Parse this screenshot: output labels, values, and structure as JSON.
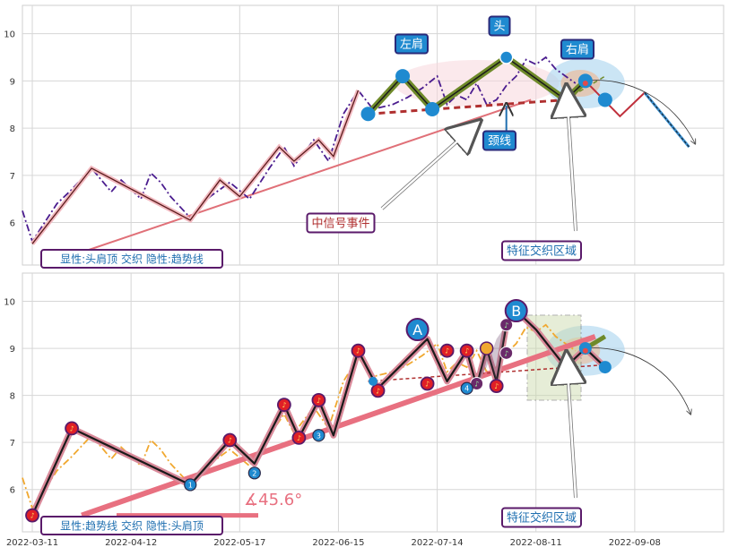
{
  "chart_data": [
    {
      "type": "line",
      "panel": "top",
      "title": "",
      "xlabel": "",
      "ylabel": "",
      "ylim": [
        5.1,
        10.6
      ],
      "yticks": [
        6,
        7,
        8,
        9,
        10
      ],
      "grid": true,
      "series": [
        {
          "style": "price-line",
          "values": [
            [
              0,
              6.25
            ],
            [
              2,
              5.6
            ],
            [
              7,
              6.4
            ],
            [
              10,
              6.7
            ],
            [
              14,
              7.15
            ],
            [
              18,
              6.65
            ],
            [
              20,
              6.9
            ],
            [
              22,
              6.7
            ],
            [
              24,
              6.5
            ],
            [
              26,
              7.05
            ],
            [
              28,
              6.85
            ],
            [
              30,
              6.55
            ],
            [
              34,
              6.1
            ],
            [
              38,
              6.55
            ],
            [
              42,
              6.85
            ],
            [
              46,
              6.5
            ],
            [
              50,
              7.15
            ],
            [
              53,
              7.6
            ],
            [
              55,
              7.2
            ],
            [
              59,
              7.75
            ],
            [
              62,
              7.3
            ],
            [
              65,
              8.3
            ],
            [
              68,
              8.8
            ],
            [
              71,
              8.4
            ],
            [
              75,
              8.5
            ],
            [
              78,
              8.65
            ],
            [
              81,
              8.85
            ],
            [
              84,
              9.1
            ],
            [
              86,
              8.5
            ],
            [
              88,
              8.7
            ],
            [
              90,
              8.6
            ],
            [
              92,
              8.95
            ],
            [
              94,
              8.5
            ],
            [
              96,
              8.6
            ],
            [
              98,
              8.9
            ],
            [
              100,
              9.1
            ],
            [
              102,
              9.45
            ],
            [
              104,
              9.35
            ],
            [
              106,
              9.5
            ],
            [
              108,
              9.25
            ],
            [
              110,
              9.1
            ],
            [
              112,
              8.95
            ]
          ]
        },
        {
          "style": "zigzag",
          "values": [
            [
              2,
              5.55
            ],
            [
              14,
              7.15
            ],
            [
              34,
              6.05
            ],
            [
              40,
              6.9
            ],
            [
              44,
              6.55
            ],
            [
              52,
              7.6
            ],
            [
              55,
              7.3
            ],
            [
              60,
              7.75
            ],
            [
              63,
              7.4
            ],
            [
              68,
              8.8
            ],
            [
              71,
              8.4
            ],
            [
              76,
              8.5
            ],
            [
              80,
              9.1
            ],
            [
              82,
              8.45
            ],
            [
              88,
              8.6
            ],
            [
              92,
              8.3
            ],
            [
              98,
              9.55
            ],
            [
              104,
              9.2
            ],
            [
              110,
              8.6
            ],
            [
              114,
              9.0
            ],
            [
              118,
              8.55
            ],
            [
              121,
              8.3
            ],
            [
              126,
              8.75
            ]
          ]
        }
      ],
      "pattern": {
        "name": "head-and-shoulders-top",
        "points": [
          [
            70,
            8.3
          ],
          [
            77,
            9.1
          ],
          [
            83,
            8.4
          ],
          [
            98,
            9.5
          ],
          [
            110,
            8.6
          ],
          [
            114,
            9.0
          ],
          [
            118,
            8.6
          ]
        ],
        "neckline": [
          [
            70,
            8.3
          ],
          [
            110,
            8.6
          ]
        ],
        "trendline": [
          [
            10,
            5.3
          ],
          [
            103,
            8.6
          ]
        ],
        "projection": [
          [
            114,
            9.0
          ],
          [
            121,
            8.25
          ],
          [
            126,
            8.75
          ],
          [
            135,
            7.6
          ]
        ]
      },
      "annotations": {
        "left_shoulder": "左肩",
        "head": "头",
        "right_shoulder": "右肩",
        "neckline": "颈线",
        "mid_signal": "中信号事件",
        "feature_zone": "特征交织区域",
        "caption": "显性:头肩顶 交织 隐性:趋势线"
      }
    },
    {
      "type": "line",
      "panel": "bottom",
      "title": "",
      "xlabel": "",
      "ylabel": "",
      "ylim": [
        5.1,
        10.6
      ],
      "yticks": [
        6,
        7,
        8,
        9,
        10
      ],
      "grid": true,
      "xticks": [
        "2022-03-11",
        "2022-04-12",
        "2022-05-17",
        "2022-06-15",
        "2022-07-14",
        "2022-08-11",
        "2022-09-08"
      ],
      "series": [
        {
          "style": "price-line",
          "values": [
            [
              0,
              6.25
            ],
            [
              2,
              5.6
            ],
            [
              7,
              6.4
            ],
            [
              10,
              6.7
            ],
            [
              14,
              7.15
            ],
            [
              18,
              6.65
            ],
            [
              20,
              6.9
            ],
            [
              22,
              6.7
            ],
            [
              24,
              6.5
            ],
            [
              26,
              7.05
            ],
            [
              28,
              6.85
            ],
            [
              30,
              6.55
            ],
            [
              34,
              6.1
            ],
            [
              38,
              6.55
            ],
            [
              42,
              6.85
            ],
            [
              46,
              6.5
            ],
            [
              50,
              7.15
            ],
            [
              53,
              7.6
            ],
            [
              55,
              7.2
            ],
            [
              59,
              7.75
            ],
            [
              62,
              7.3
            ],
            [
              65,
              8.3
            ],
            [
              68,
              8.8
            ],
            [
              71,
              8.4
            ],
            [
              75,
              8.5
            ],
            [
              78,
              8.65
            ],
            [
              81,
              8.85
            ],
            [
              84,
              9.1
            ],
            [
              86,
              8.5
            ],
            [
              88,
              8.7
            ],
            [
              90,
              8.6
            ],
            [
              92,
              8.95
            ],
            [
              94,
              8.5
            ],
            [
              96,
              8.6
            ],
            [
              98,
              8.9
            ],
            [
              100,
              9.1
            ],
            [
              102,
              9.45
            ],
            [
              104,
              9.35
            ],
            [
              106,
              9.5
            ],
            [
              108,
              9.25
            ],
            [
              110,
              9.1
            ],
            [
              112,
              8.95
            ]
          ]
        },
        {
          "style": "zigzag",
          "values": [
            [
              2,
              5.45
            ],
            [
              10,
              7.3
            ],
            [
              34,
              6.1
            ],
            [
              42,
              7.05
            ],
            [
              47,
              6.55
            ],
            [
              53,
              7.8
            ],
            [
              56,
              7.1
            ],
            [
              60,
              7.9
            ],
            [
              63,
              7.15
            ],
            [
              68,
              8.95
            ],
            [
              72,
              8.15
            ],
            [
              82,
              9.2
            ],
            [
              86,
              8.3
            ],
            [
              90,
              8.95
            ],
            [
              92,
              8.2
            ],
            [
              94,
              9.0
            ],
            [
              96,
              8.3
            ],
            [
              98,
              9.5
            ],
            [
              100,
              9.8
            ],
            [
              104,
              9.4
            ],
            [
              110,
              8.6
            ],
            [
              114,
              9.0
            ],
            [
              118,
              8.6
            ]
          ]
        }
      ],
      "pattern": {
        "name": "trendline",
        "trendline": [
          [
            12,
            5.45
          ],
          [
            116,
            9.25
          ]
        ],
        "angle_label": "∡45.6°",
        "labels": [
          "A",
          "B"
        ],
        "point_numbers": [
          "1",
          "2",
          "3",
          "4"
        ]
      },
      "annotations": {
        "feature_zone": "特征交织区域",
        "caption": "显性:趋势线 交织 隐性:头肩顶"
      }
    }
  ]
}
